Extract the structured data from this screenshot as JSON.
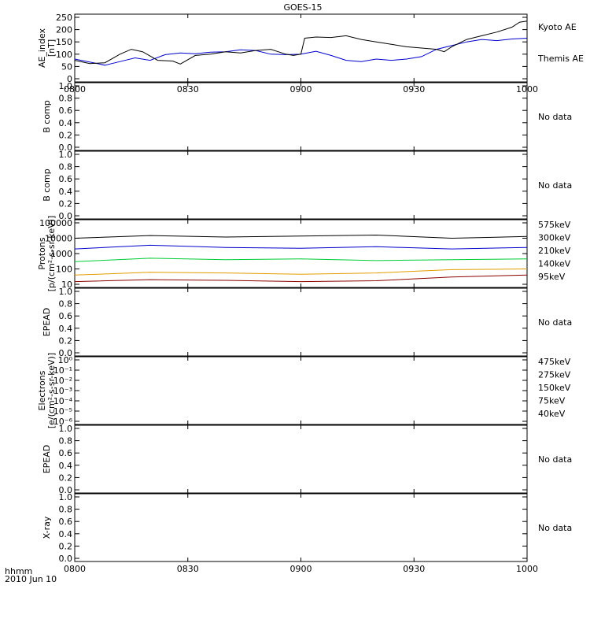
{
  "figure_title": "GOES-15",
  "date_label": "2010 Jun 10",
  "time_axis_label": "hhmm",
  "colors": {
    "kyoto": "#0000cc",
    "themis": "#000000",
    "p575": "#8b0000",
    "p300": "#e69b00",
    "p210": "#00cc33",
    "p140": "#0000cc",
    "p95": "#000000"
  },
  "chart_data": [
    {
      "type": "line",
      "ylabel": [
        "AE_index",
        "[nT]"
      ],
      "ylim": [
        0,
        250
      ],
      "yticks": [
        0,
        50,
        100,
        150,
        200,
        250
      ],
      "xlim": [
        "0800",
        "1000"
      ],
      "xticks": [
        "0800",
        "0830",
        "0900",
        "0930",
        "1000"
      ],
      "legend_placement": "right",
      "series": [
        {
          "name": "Kyoto AE",
          "color": "#0000cc",
          "x": [
            "0800",
            "0805",
            "0808",
            "0812",
            "0816",
            "0820",
            "0824",
            "0828",
            "0832",
            "0836",
            "0840",
            "0844",
            "0848",
            "0852",
            "0856",
            "0900",
            "0904",
            "0908",
            "0912",
            "0916",
            "0920",
            "0924",
            "0928",
            "0932",
            "0936",
            "0940",
            "0944",
            "0948",
            "0952",
            "0956",
            "1000"
          ],
          "values": [
            80,
            65,
            55,
            70,
            85,
            75,
            98,
            105,
            102,
            108,
            110,
            118,
            115,
            100,
            98,
            100,
            112,
            95,
            75,
            70,
            80,
            75,
            80,
            90,
            120,
            135,
            150,
            160,
            155,
            162,
            165
          ]
        },
        {
          "name": "Themis AE",
          "color": "#000000",
          "x": [
            "0800",
            "0804",
            "0808",
            "0812",
            "0815",
            "0818",
            "0822",
            "0826",
            "0828",
            "0832",
            "0836",
            "0840",
            "0844",
            "0848",
            "0852",
            "0856",
            "0858",
            "0900",
            "0901",
            "0904",
            "0908",
            "0912",
            "0916",
            "0920",
            "0924",
            "0928",
            "0932",
            "0936",
            "0938",
            "0940",
            "0944",
            "0948",
            "0952",
            "0956",
            "0958",
            "1000"
          ],
          "values": [
            75,
            62,
            65,
            100,
            120,
            110,
            75,
            72,
            60,
            95,
            100,
            110,
            105,
            115,
            120,
            100,
            95,
            100,
            165,
            170,
            168,
            175,
            160,
            150,
            140,
            130,
            125,
            120,
            110,
            130,
            160,
            175,
            190,
            210,
            230,
            235
          ]
        }
      ]
    },
    {
      "type": "line",
      "ylabel": [
        "B comp"
      ],
      "ylim": [
        0,
        1
      ],
      "yticks": [
        "0.0",
        "0.2",
        "0.4",
        "0.6",
        "0.8",
        "1.0"
      ],
      "note": "No data"
    },
    {
      "type": "line",
      "ylabel": [
        "B comp"
      ],
      "ylim": [
        0,
        1
      ],
      "yticks": [
        "0.0",
        "0.2",
        "0.4",
        "0.6",
        "0.8",
        "1.0"
      ],
      "note": "No data"
    },
    {
      "type": "line",
      "ylabel": [
        "Protons",
        "[p/(cm²-s-sr-keV)]"
      ],
      "yscale": "log",
      "ylim": [
        10,
        100000
      ],
      "yticks": [
        10,
        100,
        1000,
        10000,
        100000
      ],
      "legend_placement": "right",
      "series": [
        {
          "name": "575keV",
          "color": "#8b0000",
          "x": [
            "0800",
            "0820",
            "0840",
            "0900",
            "0920",
            "0940",
            "1000"
          ],
          "values": [
            15,
            20,
            18,
            15,
            17,
            30,
            40
          ]
        },
        {
          "name": "300keV",
          "color": "#e69b00",
          "x": [
            "0800",
            "0820",
            "0840",
            "0900",
            "0920",
            "0940",
            "1000"
          ],
          "values": [
            40,
            60,
            55,
            45,
            55,
            90,
            100
          ]
        },
        {
          "name": "210keV",
          "color": "#00cc33",
          "x": [
            "0800",
            "0820",
            "0840",
            "0900",
            "0920",
            "0940",
            "1000"
          ],
          "values": [
            300,
            500,
            400,
            450,
            350,
            400,
            450
          ]
        },
        {
          "name": "140keV",
          "color": "#0000cc",
          "x": [
            "0800",
            "0820",
            "0840",
            "0900",
            "0920",
            "0940",
            "1000"
          ],
          "values": [
            2000,
            3500,
            2500,
            2200,
            2800,
            2000,
            2500
          ]
        },
        {
          "name": "95keV",
          "color": "#000000",
          "x": [
            "0800",
            "0820",
            "0840",
            "0900",
            "0920",
            "0940",
            "1000"
          ],
          "values": [
            10000,
            15000,
            12000,
            14000,
            16000,
            10000,
            13000
          ]
        }
      ]
    },
    {
      "type": "line",
      "ylabel": [
        "EPEAD"
      ],
      "ylim": [
        0,
        1
      ],
      "yticks": [
        "0.0",
        "0.2",
        "0.4",
        "0.6",
        "0.8",
        "1.0"
      ],
      "note": "No data"
    },
    {
      "type": "line",
      "ylabel": [
        "Electrons",
        "[e/(cm²-s-sr-keV)]"
      ],
      "yscale": "log",
      "ylim": [
        1e-06,
        1
      ],
      "yticks": [
        "10⁻⁶",
        "10⁻⁵",
        "10⁻⁴",
        "10⁻³",
        "10⁻²",
        "10⁻¹",
        "10⁰"
      ],
      "legend_placement": "right",
      "series": [
        {
          "name": "475keV",
          "color": "#8b0000",
          "x": [],
          "values": []
        },
        {
          "name": "275keV",
          "color": "#e69b00",
          "x": [],
          "values": []
        },
        {
          "name": "150keV",
          "color": "#00cc33",
          "x": [],
          "values": []
        },
        {
          "name": "75keV",
          "color": "#0000cc",
          "x": [],
          "values": []
        },
        {
          "name": "40keV",
          "color": "#000000",
          "x": [],
          "values": []
        }
      ]
    },
    {
      "type": "line",
      "ylabel": [
        "EPEAD"
      ],
      "ylim": [
        0,
        1
      ],
      "yticks": [
        "0.0",
        "0.2",
        "0.4",
        "0.6",
        "0.8",
        "1.0"
      ],
      "note": "No data"
    },
    {
      "type": "line",
      "ylabel": [
        "X-ray"
      ],
      "ylim": [
        0,
        1
      ],
      "yticks": [
        "0.0",
        "0.2",
        "0.4",
        "0.6",
        "0.8",
        "1.0"
      ],
      "xticks": [
        "0800",
        "0830",
        "0900",
        "0930",
        "1000"
      ],
      "note": "No data"
    }
  ]
}
